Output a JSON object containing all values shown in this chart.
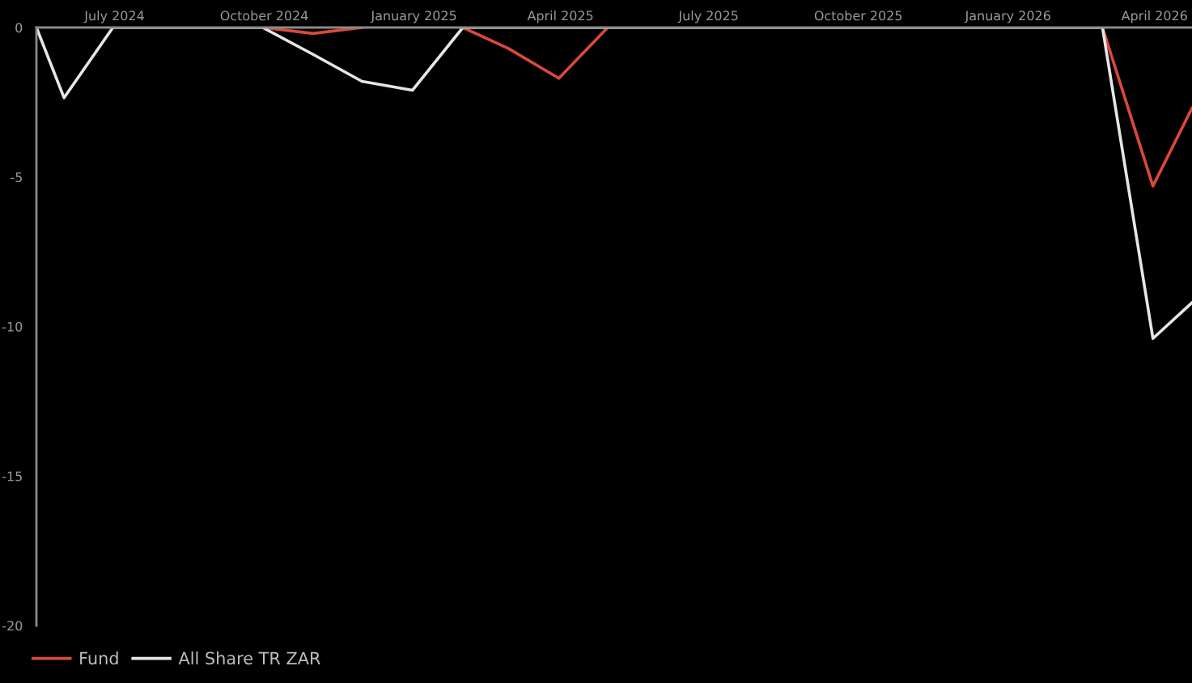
{
  "chart_data": {
    "type": "line",
    "x": [
      "2024-05-14",
      "2024-05-31",
      "2024-06-30",
      "2024-07-31",
      "2024-08-31",
      "2024-09-30",
      "2024-10-31",
      "2024-11-30",
      "2024-12-31",
      "2025-01-31",
      "2025-02-28",
      "2025-03-31",
      "2025-04-30",
      "2025-05-31",
      "2025-06-30",
      "2025-07-31",
      "2025-08-31",
      "2025-09-30",
      "2025-10-31",
      "2025-11-30",
      "2025-12-31",
      "2026-01-31",
      "2026-02-28",
      "2026-03-31",
      "2026-04-24"
    ],
    "series": [
      {
        "name": "Fund",
        "color": "#d9493a",
        "values": [
          null,
          null,
          null,
          null,
          null,
          0,
          -0.2,
          0,
          null,
          0,
          -0.7,
          -1.7,
          0,
          null,
          null,
          null,
          null,
          null,
          null,
          null,
          null,
          null,
          0,
          -5.3,
          -2.7
        ]
      },
      {
        "name": "All Share TR ZAR",
        "color": "#e6e6e6",
        "values": [
          0,
          -2.35,
          0,
          0,
          0,
          0,
          -0.9,
          -1.8,
          -2.1,
          0,
          0,
          0,
          0,
          0,
          0,
          0,
          0,
          0,
          0,
          0,
          0,
          0,
          0,
          -10.4,
          -9.2
        ]
      }
    ],
    "xlim": [
      "2024-05-14",
      "2026-04-24"
    ],
    "xticks": [
      {
        "value": "2024-07-01",
        "label": "July 2024"
      },
      {
        "value": "2024-10-01",
        "label": "October 2024"
      },
      {
        "value": "2025-01-01",
        "label": "January 2025"
      },
      {
        "value": "2025-04-01",
        "label": "April 2025"
      },
      {
        "value": "2025-07-01",
        "label": "July 2025"
      },
      {
        "value": "2025-10-01",
        "label": "October 2025"
      },
      {
        "value": "2026-01-01",
        "label": "January 2026"
      },
      {
        "value": "2026-04-01",
        "label": "April 2026"
      }
    ],
    "ylim": [
      -20,
      0
    ],
    "yticks": [
      0,
      -5,
      -10,
      -15,
      -20
    ],
    "grid": false,
    "legend": "bottom left",
    "marker": "none",
    "line_style": "solid"
  }
}
